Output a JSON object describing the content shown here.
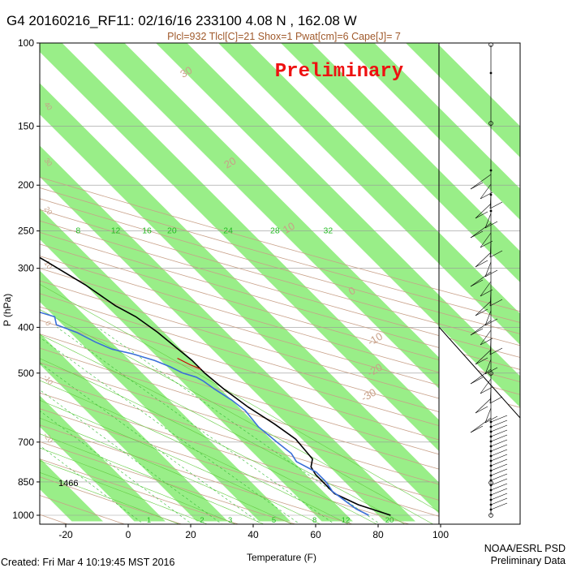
{
  "header": {
    "title": "G4 20160216_RF11: 02/16/16 233100    4.08 N , 162.08 W",
    "indices": "Plcl=932 Tlcl[C]=21 Shox=1 Pwat[cm]=6 Cape[J]= 7",
    "stamp": "Preliminary"
  },
  "footer": {
    "created": "Created: Fri Mar  4 10:19:45 MST 2016",
    "org": "NOAA/ESRL PSD",
    "note": "Preliminary Data"
  },
  "colors": {
    "band": "#99ee88",
    "temperature": "#000000",
    "dewpoint": "#3a6fd8",
    "dry_adiabat": "#c8a088",
    "moist_adiabat": "#66cc44",
    "mixing_ratio": "#33bb33",
    "stamp": "#ee1111"
  },
  "chart_data": {
    "type": "line",
    "xlabel": "Temperature (F)",
    "ylabel": "P (hPa)",
    "xlim": [
      -27,
      127
    ],
    "ylim": [
      1030,
      100
    ],
    "x_ticks": [
      -20,
      0,
      20,
      40,
      60,
      80,
      100
    ],
    "y_ticks": [
      100,
      150,
      200,
      250,
      300,
      400,
      500,
      700,
      850,
      1000
    ],
    "mixing_ratio_labels": [
      {
        "label": "8",
        "t": 75
      },
      {
        "label": "12",
        "t": 87
      },
      {
        "label": "16",
        "t": 97
      },
      {
        "label": "20",
        "t": 105
      },
      {
        "label": "24",
        "t": 123
      },
      {
        "label": "28",
        "t": 138
      },
      {
        "label": "32",
        "t": 155
      }
    ],
    "mixing_ratio_bottom_labels": [
      {
        "label": "1",
        "t": 3
      },
      {
        "label": "2",
        "t": 20
      },
      {
        "label": "3",
        "t": 29
      },
      {
        "label": "5",
        "t": 43
      },
      {
        "label": "8",
        "t": 56
      },
      {
        "label": "12",
        "t": 66
      },
      {
        "label": "20",
        "t": 80
      }
    ],
    "theta_labels": [
      {
        "label": "50",
        "t": -30
      },
      {
        "label": "60",
        "t": -18
      },
      {
        "label": "70",
        "t": -7
      },
      {
        "label": "80",
        "t": 6
      },
      {
        "label": "90",
        "t": 17
      },
      {
        "label": "100",
        "t": 28
      },
      {
        "label": "110",
        "t": 41
      },
      {
        "label": "120",
        "t": 53
      },
      {
        "label": "130",
        "t": 64
      },
      {
        "label": "140",
        "t": 75
      },
      {
        "label": "150",
        "t": 85
      },
      {
        "label": "160",
        "t": 97
      }
    ],
    "theta_left_labels": [
      {
        "label": "40",
        "p": 137
      },
      {
        "label": "30",
        "p": 180
      },
      {
        "label": "20",
        "p": 228
      },
      {
        "label": "10",
        "p": 297
      },
      {
        "label": "0",
        "p": 395
      },
      {
        "label": "-10",
        "p": 520
      },
      {
        "label": "-20",
        "p": 690
      }
    ],
    "theta_e_labels": [
      {
        "label": "30",
        "p": 117,
        "t": 160
      },
      {
        "label": "20",
        "p": 182,
        "t": 145
      },
      {
        "label": "10",
        "p": 250,
        "t": 143
      },
      {
        "label": "0",
        "p": 340,
        "t": 143
      },
      {
        "label": "-10",
        "p": 430,
        "t": 135
      },
      {
        "label": "-20",
        "p": 500,
        "t": 125
      },
      {
        "label": "-30",
        "p": 565,
        "t": 115
      }
    ],
    "surface_height_label": "1466",
    "series": [
      {
        "name": "Temperature",
        "points": [
          [
            37,
            188
          ],
          [
            40,
            200
          ],
          [
            45,
            230
          ],
          [
            50,
            260
          ],
          [
            55,
            290
          ],
          [
            60,
            325
          ],
          [
            63,
            360
          ],
          [
            66,
            380
          ],
          [
            68,
            410
          ],
          [
            69,
            440
          ],
          [
            70,
            470
          ],
          [
            70,
            500
          ],
          [
            71,
            540
          ],
          [
            73,
            590
          ],
          [
            76,
            640
          ],
          [
            78,
            690
          ],
          [
            77,
            760
          ],
          [
            74,
            790
          ],
          [
            73,
            820
          ],
          [
            73,
            860
          ],
          [
            73,
            900
          ],
          [
            77,
            950
          ],
          [
            84,
            1000
          ]
        ]
      },
      {
        "name": "Dewpoint",
        "points": [
          [
            8,
            215
          ],
          [
            12,
            225
          ],
          [
            16,
            235
          ],
          [
            20,
            245
          ],
          [
            22,
            250
          ],
          [
            25,
            255
          ],
          [
            27,
            265
          ],
          [
            28,
            270
          ],
          [
            25,
            290
          ],
          [
            18,
            295
          ],
          [
            16,
            305
          ],
          [
            24,
            310
          ],
          [
            30,
            320
          ],
          [
            34,
            340
          ],
          [
            36,
            350
          ],
          [
            38,
            360
          ],
          [
            36,
            370
          ],
          [
            40,
            380
          ],
          [
            38,
            395
          ],
          [
            42,
            410
          ],
          [
            45,
            430
          ],
          [
            48,
            445
          ],
          [
            53,
            455
          ],
          [
            58,
            470
          ],
          [
            61,
            485
          ],
          [
            63,
            500
          ],
          [
            66,
            510
          ],
          [
            67,
            520
          ],
          [
            68,
            540
          ],
          [
            70,
            570
          ],
          [
            71,
            600
          ],
          [
            70,
            650
          ],
          [
            71,
            700
          ],
          [
            72,
            740
          ],
          [
            71,
            770
          ],
          [
            74,
            810
          ],
          [
            74,
            850
          ],
          [
            73,
            890
          ],
          [
            74,
            930
          ],
          [
            75,
            970
          ],
          [
            77,
            1000
          ]
        ]
      }
    ]
  }
}
